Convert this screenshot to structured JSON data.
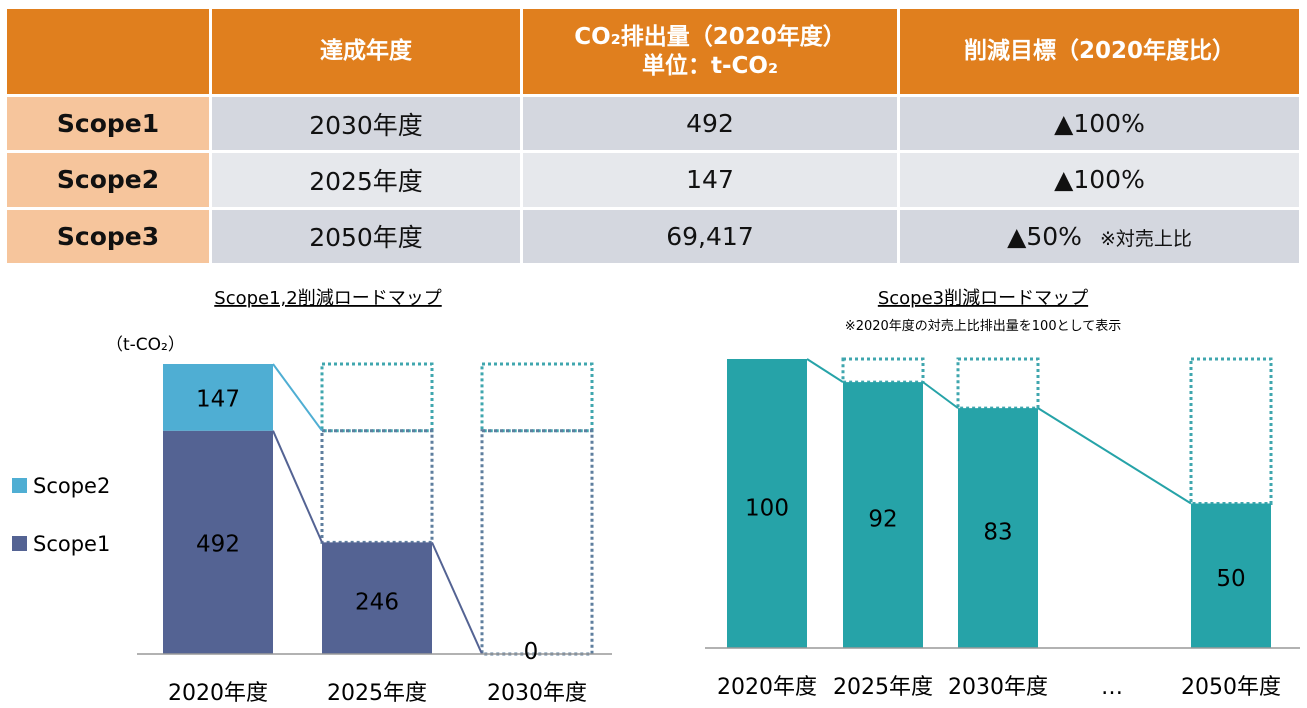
{
  "table": {
    "headers": [
      "",
      "達成年度",
      "CO₂排出量（2020年度）\n単位：t-CO₂",
      "削減目標（2020年度比）"
    ],
    "rows": [
      {
        "scope": "Scope1",
        "year": "2030年度",
        "emission": "492",
        "target": "▲100%",
        "note": ""
      },
      {
        "scope": "Scope2",
        "year": "2025年度",
        "emission": "147",
        "target": "▲100%",
        "note": ""
      },
      {
        "scope": "Scope3",
        "year": "2050年度",
        "emission": "69,417",
        "target": "▲50%",
        "note": "※対売上比"
      }
    ]
  },
  "colors": {
    "header_orange": "#E07F1E",
    "row_header_peach": "#F6C59C",
    "scope1": "#546393",
    "scope2": "#4FAED3",
    "scope3": "#26A3A8",
    "dotted1": "#5E7E9E",
    "dotted2": "#3FA6AE"
  },
  "chart_data": [
    {
      "type": "bar",
      "stacked": true,
      "title": "Scope1,2削減ロードマップ",
      "unit_label": "（t-CO₂）",
      "categories": [
        "2020年度",
        "2025年度",
        "2030年度"
      ],
      "series": [
        {
          "name": "Scope1",
          "values": [
            492,
            246,
            0
          ]
        },
        {
          "name": "Scope2",
          "values": [
            147,
            0,
            0
          ]
        }
      ],
      "value_labels": [
        {
          "category": "2020年度",
          "series": "Scope2",
          "text": "147"
        },
        {
          "category": "2020年度",
          "series": "Scope1",
          "text": "492"
        },
        {
          "category": "2025年度",
          "series": "Scope1",
          "text": "246"
        },
        {
          "category": "2030年度",
          "series": "total",
          "text": "0"
        }
      ],
      "baseline_total": 639,
      "ylim": [
        0,
        639
      ],
      "legend": [
        "Scope2",
        "Scope1"
      ],
      "legend_position": "left",
      "grid": false
    },
    {
      "type": "bar",
      "title": "Scope3削減ロードマップ",
      "subtitle": "※2020年度の対売上比排出量を100として表示",
      "categories": [
        "2020年度",
        "2025年度",
        "2030年度",
        "…",
        "2050年度"
      ],
      "values": [
        100,
        92,
        83,
        null,
        50
      ],
      "value_labels": [
        "100",
        "92",
        "83",
        "",
        "50"
      ],
      "ylim": [
        0,
        100
      ],
      "grid": false
    }
  ]
}
